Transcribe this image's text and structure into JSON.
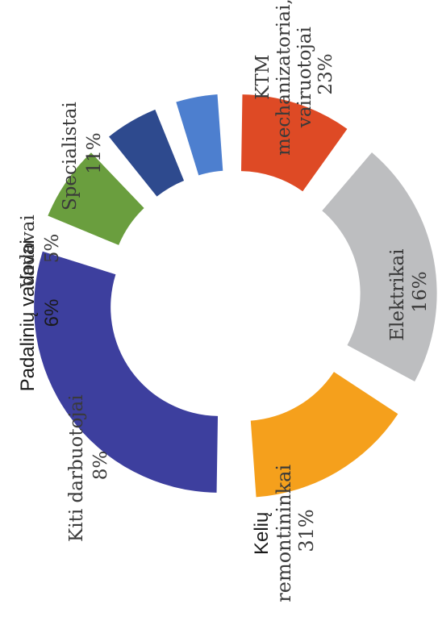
{
  "chart_data": {
    "type": "pie",
    "style": "exploded donut, rotated 90° counter-clockwise",
    "slices": [
      {
        "label": [
          "KTM",
          "mechanizatoriai,",
          "vairuotojai"
        ],
        "pct_text": "23%",
        "value": 23,
        "color": "#bdbec0"
      },
      {
        "label": [
          "Elektrikai"
        ],
        "pct_text": "16%",
        "value": 16,
        "color": "#f5a01c"
      },
      {
        "label": [
          "Kelių",
          "remontininkai"
        ],
        "pct_text": "31%",
        "value": 31,
        "color": "#3d3f9e"
      },
      {
        "label": [
          "Kiti darbuotojai"
        ],
        "pct_text": "8%",
        "value": 8,
        "color": "#6a9e3e"
      },
      {
        "label": [
          "Padalinių vadovai"
        ],
        "pct_text": "6%",
        "value": 6,
        "color": "#2e4a8e"
      },
      {
        "label": [
          "Vadovai"
        ],
        "pct_text": "5%",
        "value": 5,
        "color": "#4d7fcf"
      },
      {
        "label": [
          "Specialistai"
        ],
        "pct_text": "11%",
        "value": 11,
        "color": "#de4a25"
      }
    ]
  }
}
